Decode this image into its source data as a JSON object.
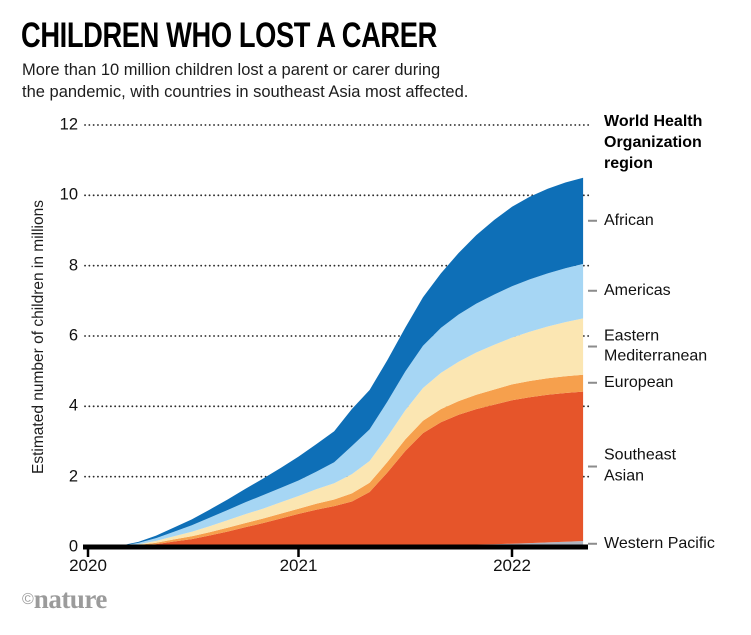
{
  "header": {
    "title": "CHILDREN WHO LOST A CARER",
    "subtitle": "More than 10 million children lost a parent or carer during\nthe pandemic, with countries in southeast Asia most affected."
  },
  "footer": {
    "copyright_symbol": "©",
    "wordmark": "nature"
  },
  "chart_data": {
    "type": "area",
    "stacked": true,
    "title": "CHILDREN WHO LOST A CARER",
    "xlabel": "",
    "ylabel": "Estimated number of children in millions",
    "ylim": [
      0,
      12
    ],
    "xlim": [
      2020.0,
      2022.333
    ],
    "grid": "horizontal-dotted",
    "legend_position": "right",
    "legend_title": "World Health\nOrganization\nregion",
    "y_ticks": [
      0,
      2,
      4,
      6,
      8,
      10,
      12
    ],
    "x_ticks": [
      {
        "value": 2020,
        "label": "2020"
      },
      {
        "value": 2021,
        "label": "2021"
      },
      {
        "value": 2022,
        "label": "2022"
      }
    ],
    "x": [
      2020.0,
      2020.083,
      2020.167,
      2020.25,
      2020.333,
      2020.417,
      2020.5,
      2020.583,
      2020.667,
      2020.75,
      2020.833,
      2020.917,
      2021.0,
      2021.083,
      2021.167,
      2021.25,
      2021.333,
      2021.417,
      2021.5,
      2021.583,
      2021.667,
      2021.75,
      2021.833,
      2021.917,
      2022.0,
      2022.083,
      2022.167,
      2022.25,
      2022.333
    ],
    "series_note": "cumulative millions of children, listed bottom-to-top of stack",
    "series": [
      {
        "name": "Western Pacific",
        "color": "#AEB5C1",
        "values": [
          0,
          0,
          0,
          0.001,
          0.003,
          0.005,
          0.006,
          0.007,
          0.008,
          0.009,
          0.009,
          0.01,
          0.01,
          0.011,
          0.012,
          0.013,
          0.015,
          0.02,
          0.03,
          0.04,
          0.05,
          0.06,
          0.07,
          0.08,
          0.095,
          0.11,
          0.13,
          0.15,
          0.17
        ]
      },
      {
        "name": "Southeast Asian",
        "color": "#E6552A",
        "values": [
          0,
          0,
          0.01,
          0.04,
          0.08,
          0.15,
          0.22,
          0.32,
          0.43,
          0.55,
          0.67,
          0.8,
          0.93,
          1.05,
          1.15,
          1.28,
          1.55,
          2.1,
          2.7,
          3.2,
          3.5,
          3.7,
          3.85,
          3.97,
          4.08,
          4.15,
          4.2,
          4.23,
          4.25
        ]
      },
      {
        "name": "European",
        "color": "#F6A04D",
        "values": [
          0,
          0,
          0.005,
          0.015,
          0.04,
          0.06,
          0.08,
          0.095,
          0.11,
          0.12,
          0.13,
          0.14,
          0.15,
          0.17,
          0.19,
          0.23,
          0.26,
          0.3,
          0.33,
          0.35,
          0.37,
          0.39,
          0.41,
          0.43,
          0.45,
          0.46,
          0.47,
          0.475,
          0.48
        ]
      },
      {
        "name": "Eastern Mediterranean",
        "color": "#FBE6B2",
        "values": [
          0,
          0,
          0.005,
          0.02,
          0.05,
          0.09,
          0.13,
          0.17,
          0.21,
          0.25,
          0.28,
          0.32,
          0.36,
          0.41,
          0.46,
          0.55,
          0.62,
          0.72,
          0.83,
          0.93,
          1.03,
          1.12,
          1.2,
          1.27,
          1.33,
          1.4,
          1.47,
          1.54,
          1.6
        ]
      },
      {
        "name": "Americas",
        "color": "#A6D6F4",
        "values": [
          0,
          0,
          0.01,
          0.04,
          0.08,
          0.13,
          0.18,
          0.24,
          0.29,
          0.34,
          0.38,
          0.41,
          0.44,
          0.5,
          0.6,
          0.8,
          0.9,
          1.0,
          1.1,
          1.2,
          1.28,
          1.34,
          1.39,
          1.43,
          1.46,
          1.49,
          1.51,
          1.53,
          1.55
        ]
      },
      {
        "name": "African",
        "color": "#0E6FB7",
        "values": [
          0,
          0,
          0.01,
          0.03,
          0.07,
          0.12,
          0.17,
          0.23,
          0.3,
          0.38,
          0.47,
          0.57,
          0.68,
          0.78,
          0.88,
          1.05,
          1.12,
          1.18,
          1.25,
          1.38,
          1.55,
          1.75,
          1.95,
          2.12,
          2.26,
          2.35,
          2.41,
          2.44,
          2.45
        ]
      }
    ],
    "legend_items": [
      {
        "series": "African",
        "label": "African"
      },
      {
        "series": "Americas",
        "label": "Americas"
      },
      {
        "series": "Eastern Mediterranean",
        "label": "Eastern\nMediterranean"
      },
      {
        "series": "European",
        "label": "European"
      },
      {
        "series": "Southeast Asian",
        "label": "Southeast\nAsian"
      },
      {
        "series": "Western Pacific",
        "label": "Western Pacific"
      }
    ],
    "axis_color": "#000000",
    "grid_color": "#2b2b2b"
  }
}
